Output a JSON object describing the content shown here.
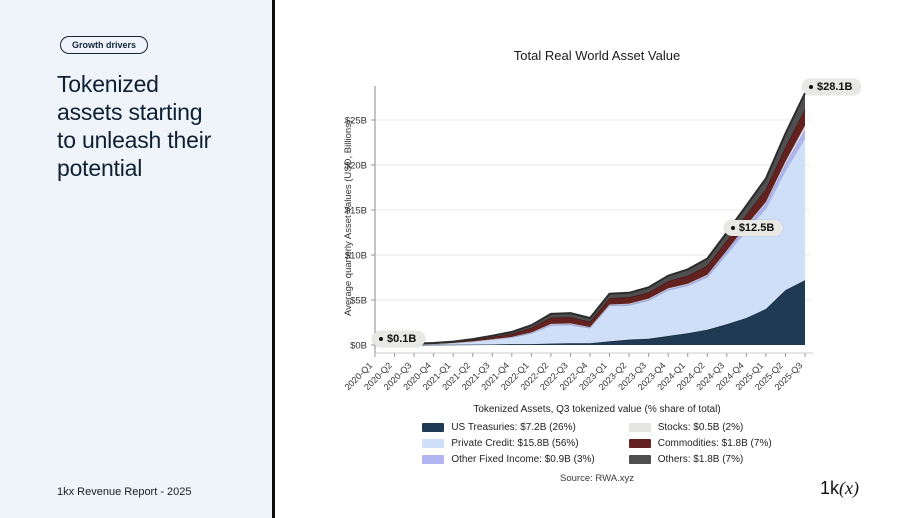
{
  "left_panel": {
    "badge": "Growth drivers",
    "title_lines": [
      "Tokenized",
      "assets starting",
      "to unleash their",
      "potential"
    ],
    "footer": "1kx Revenue Report  - 2025"
  },
  "logo": {
    "text_plain": "1k",
    "text_italic": "(x)"
  },
  "chart": {
    "source": "Source: RWA.xyz"
  },
  "chart_data": {
    "type": "area",
    "stacked": true,
    "title": "Total Real World Asset Value",
    "ylabel": "Average quarterly Asset Values (USD, Billions)",
    "legend_title": "Tokenized Assets, Q3 tokenized value (% share of total)",
    "legend_position": "bottom",
    "grid": true,
    "ylim": [
      0,
      28.5
    ],
    "ytick_labels": [
      "$0B",
      "$5B",
      "$10B",
      "$15B",
      "$20B",
      "$25B"
    ],
    "ytick_values": [
      0,
      5,
      10,
      15,
      20,
      25
    ],
    "categories": [
      "2020-Q1",
      "2020-Q2",
      "2020-Q3",
      "2020-Q4",
      "2021-Q1",
      "2021-Q2",
      "2021-Q3",
      "2021-Q4",
      "2022-Q1",
      "2022-Q2",
      "2022-Q3",
      "2022-Q4",
      "2023-Q1",
      "2023-Q2",
      "2023-Q3",
      "2023-Q4",
      "2024-Q1",
      "2024-Q2",
      "2024-Q3",
      "2024-Q4",
      "2025-Q1",
      "2025-Q2",
      "2025-Q3"
    ],
    "series": [
      {
        "name": "US Treasuries",
        "legend_label": "US Treasuries: $7.2B (26%)",
        "color": "#1f3a52",
        "edge": "#142838",
        "values": [
          0,
          0,
          0,
          0.02,
          0.03,
          0.05,
          0.06,
          0.1,
          0.1,
          0.15,
          0.2,
          0.2,
          0.4,
          0.6,
          0.7,
          1.0,
          1.3,
          1.7,
          2.3,
          3.0,
          4.0,
          6.1,
          7.2
        ]
      },
      {
        "name": "Private Credit",
        "legend_label": "Private Credit: $15.8B (56%)",
        "color": "#cfdff7",
        "edge": "#a3b4d8",
        "values": [
          0.05,
          0.05,
          0.08,
          0.1,
          0.2,
          0.35,
          0.55,
          0.75,
          1.2,
          2.05,
          2.05,
          1.7,
          4.0,
          3.8,
          4.25,
          5.1,
          5.3,
          5.85,
          7.8,
          9.75,
          11.2,
          13.3,
          15.8
        ]
      },
      {
        "name": "Other Fixed Income",
        "legend_label": "Other Fixed Income: $0.9B (3%)",
        "color": "#b1b4f0",
        "edge": "#8e92de",
        "values": [
          0,
          0,
          0,
          0,
          0,
          0,
          0.02,
          0.03,
          0.05,
          0.05,
          0.05,
          0.05,
          0.05,
          0.1,
          0.1,
          0.1,
          0.1,
          0.15,
          0.3,
          0.4,
          0.5,
          0.7,
          0.9
        ]
      },
      {
        "name": "Stocks",
        "legend_label": "Stocks: $0.5B (2%)",
        "color": "#e4e4e2",
        "edge": "#c2c2c0",
        "values": [
          0,
          0,
          0,
          0,
          0,
          0,
          0,
          0.02,
          0.05,
          0.1,
          0.1,
          0.05,
          0.05,
          0.1,
          0.1,
          0.1,
          0.1,
          0.1,
          0.1,
          0.15,
          0.2,
          0.3,
          0.5
        ]
      },
      {
        "name": "Commodities",
        "legend_label": "Commodities: $1.8B (7%)",
        "color": "#632120",
        "edge": "#421414",
        "values": [
          0.02,
          0.02,
          0.03,
          0.05,
          0.08,
          0.15,
          0.25,
          0.35,
          0.5,
          0.7,
          0.7,
          0.6,
          0.7,
          0.7,
          0.7,
          0.8,
          0.9,
          1.0,
          1.1,
          1.2,
          1.4,
          1.6,
          1.8
        ]
      },
      {
        "name": "Others",
        "legend_label": "Others: $1.8B (7%)",
        "color": "#4f4f4f",
        "edge": "#2b2b2b",
        "values": [
          0.03,
          0.03,
          0.04,
          0.05,
          0.07,
          0.1,
          0.15,
          0.2,
          0.3,
          0.4,
          0.45,
          0.4,
          0.5,
          0.5,
          0.55,
          0.6,
          0.7,
          0.8,
          0.9,
          1.0,
          1.2,
          1.5,
          1.8
        ]
      }
    ],
    "annotations": [
      {
        "label": "$0.1B",
        "category": "2020-Q1",
        "value": 0.1
      },
      {
        "label": "$12.5B",
        "category": "2024-Q3",
        "value": 12.5
      },
      {
        "label": "$28.1B",
        "category": "2025-Q3",
        "value": 28.1
      }
    ]
  }
}
